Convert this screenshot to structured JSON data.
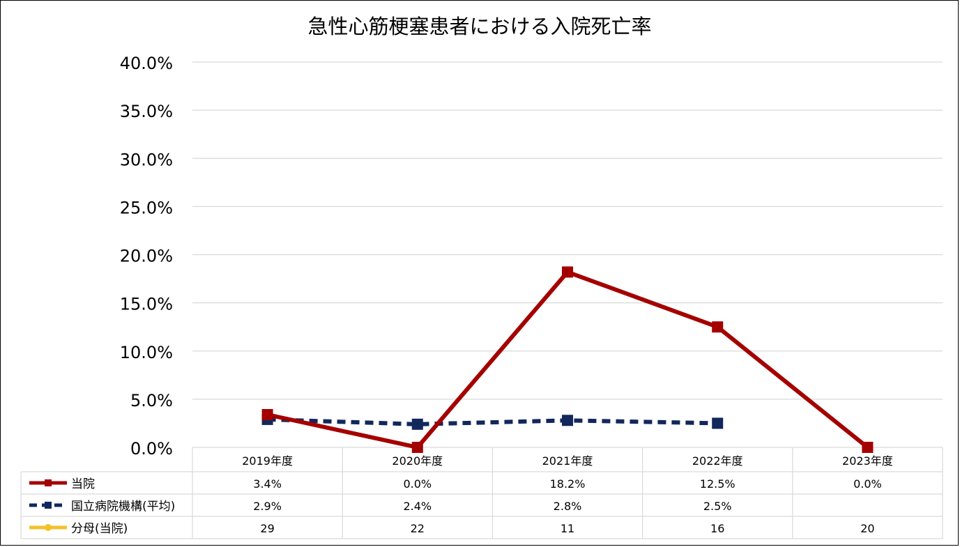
{
  "chart_data": {
    "type": "line",
    "title": "急性心筋梗塞患者における入院死亡率",
    "categories": [
      "2019年度",
      "2020年度",
      "2021年度",
      "2022年度",
      "2023年度"
    ],
    "y_ticks": [
      "0.0%",
      "5.0%",
      "10.0%",
      "15.0%",
      "20.0%",
      "25.0%",
      "30.0%",
      "35.0%",
      "40.0%"
    ],
    "ylim": [
      0,
      40
    ],
    "grid": true,
    "legend": "data-table",
    "series": [
      {
        "name": "当院",
        "values": [
          3.4,
          0.0,
          18.2,
          12.5,
          0.0
        ],
        "labels": [
          "3.4%",
          "0.0%",
          "18.2%",
          "12.5%",
          "0.0%"
        ],
        "color": "#A50000",
        "style": "solid",
        "marker": "square"
      },
      {
        "name": "国立病院機構(平均)",
        "values": [
          2.9,
          2.4,
          2.8,
          2.5,
          null
        ],
        "labels": [
          "2.9%",
          "2.4%",
          "2.8%",
          "2.5%",
          ""
        ],
        "color": "#12285C",
        "style": "dashed",
        "marker": "square"
      },
      {
        "name": "分母(当院)",
        "values": [
          29,
          22,
          11,
          16,
          20
        ],
        "labels": [
          "29",
          "22",
          "11",
          "16",
          "20"
        ],
        "color": "#F3C22A",
        "style": "solid",
        "marker": "circle",
        "plotted": false
      }
    ]
  }
}
